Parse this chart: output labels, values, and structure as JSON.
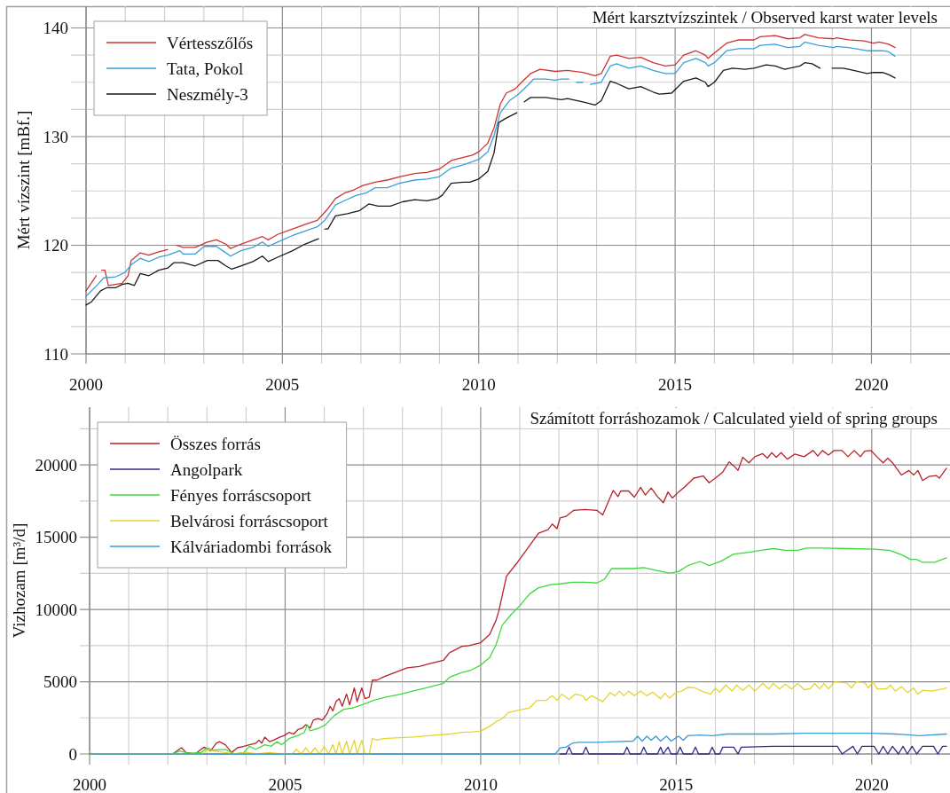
{
  "chart_data": [
    {
      "type": "line",
      "title": "Mért karsztvízszintek / Observed karst water levels",
      "ylabel": "Mért vízszint [mBf.]",
      "xlim": [
        2000,
        2022
      ],
      "ylim": [
        110,
        142
      ],
      "xticks": [
        2000,
        {
          "value": 2001,
          "label": null
        },
        {
          "value": 2002,
          "label": null
        },
        {
          "value": 2003,
          "label": null
        },
        {
          "value": 2004,
          "label": null
        },
        2005,
        {
          "value": 2006,
          "label": null
        },
        {
          "value": 2007,
          "label": null
        },
        {
          "value": 2008,
          "label": null
        },
        {
          "value": 2009,
          "label": null
        },
        2010,
        {
          "value": 2011,
          "label": null
        },
        {
          "value": 2012,
          "label": null
        },
        {
          "value": 2013,
          "label": null
        },
        {
          "value": 2014,
          "label": null
        },
        2015,
        {
          "value": 2016,
          "label": null
        },
        {
          "value": 2017,
          "label": null
        },
        {
          "value": 2018,
          "label": null
        },
        {
          "value": 2019,
          "label": null
        },
        2020,
        {
          "value": 2021,
          "label": null
        }
      ],
      "yticks": [
        110,
        {
          "value": 112.5,
          "label": null
        },
        {
          "value": 115,
          "label": null
        },
        {
          "value": 117.5,
          "label": null
        },
        120,
        {
          "value": 122.5,
          "label": null
        },
        {
          "value": 125,
          "label": null
        },
        {
          "value": 127.5,
          "label": null
        },
        130,
        {
          "value": 132.5,
          "label": null
        },
        {
          "value": 135,
          "label": null
        },
        {
          "value": 137.5,
          "label": null
        },
        140
      ],
      "grid": true,
      "legend": "top left",
      "series": [
        {
          "name": "Vértesszőlős",
          "color": "#cc3333",
          "x": [
            2000.0,
            2000.26,
            2000.33,
            2000.4,
            2000.48,
            2000.57,
            2000.92,
            2001.07,
            2001.15,
            2001.38,
            2001.6,
            2001.85,
            2002.08,
            2002.19,
            2002.3,
            2002.47,
            2002.78,
            2003.09,
            2003.32,
            2003.56,
            2003.68,
            2003.94,
            2004.25,
            2004.49,
            2004.64,
            2004.88,
            2005.26,
            2005.57,
            2005.89,
            2006.12,
            2006.35,
            2006.58,
            2006.82,
            2007.05,
            2007.36,
            2007.67,
            2007.98,
            2008.37,
            2008.68,
            2008.99,
            2009.3,
            2009.61,
            2009.84,
            2010.0,
            2010.23,
            2010.39,
            2010.55,
            2010.7,
            2010.93,
            2011.09,
            2011.32,
            2011.56,
            2011.95,
            2012.26,
            2012.65,
            2012.96,
            2013.12,
            2013.35,
            2013.51,
            2013.82,
            2014.13,
            2014.44,
            2014.75,
            2015.0,
            2015.22,
            2015.53,
            2015.77,
            2015.84,
            2016.0,
            2016.31,
            2016.62,
            2017.01,
            2017.17,
            2017.55,
            2017.87,
            2018.18,
            2018.3,
            2018.65,
            2019.04,
            2019.11,
            2019.42,
            2019.81,
            2020.05,
            2020.2,
            2020.44,
            2020.6
          ],
          "values": [
            115.8,
            117.2,
            null,
            117.7,
            117.7,
            116.3,
            116.5,
            117.2,
            118.6,
            119.3,
            119.1,
            119.4,
            119.6,
            null,
            120.0,
            119.8,
            119.8,
            120.3,
            120.5,
            120.1,
            119.7,
            120.1,
            120.5,
            120.8,
            120.5,
            121.0,
            121.5,
            121.9,
            122.3,
            123.2,
            124.3,
            124.8,
            125.1,
            125.5,
            125.8,
            126.0,
            126.3,
            126.6,
            126.7,
            127.0,
            127.8,
            128.1,
            128.3,
            128.6,
            129.4,
            130.8,
            133.0,
            134.0,
            134.4,
            135.0,
            135.8,
            136.2,
            136.0,
            136.1,
            135.9,
            135.6,
            135.8,
            137.4,
            137.5,
            137.2,
            137.3,
            136.8,
            136.5,
            136.6,
            137.5,
            137.9,
            137.5,
            137.2,
            137.7,
            138.6,
            138.9,
            138.9,
            139.2,
            139.3,
            139.0,
            139.1,
            139.4,
            139.1,
            139.0,
            139.1,
            138.9,
            138.8,
            138.6,
            138.7,
            138.5,
            138.2
          ]
        },
        {
          "name": "Tata, Pokol",
          "color": "#3b9fd8",
          "x": [
            2000.0,
            2000.3,
            2000.45,
            2000.76,
            2000.99,
            2001.15,
            2001.38,
            2001.6,
            2001.85,
            2002.08,
            2002.39,
            2002.47,
            2002.78,
            2003.01,
            2003.32,
            2003.52,
            2003.68,
            2003.94,
            2004.25,
            2004.49,
            2004.64,
            2004.88,
            2005.26,
            2005.57,
            2005.89,
            2006.08,
            2006.35,
            2006.58,
            2006.89,
            2007.13,
            2007.36,
            2007.67,
            2007.98,
            2008.37,
            2008.68,
            2008.99,
            2009.3,
            2009.61,
            2010.0,
            2010.23,
            2010.39,
            2010.55,
            2010.78,
            2011.01,
            2011.24,
            2011.4,
            2011.71,
            2011.95,
            2012.1,
            2012.3,
            2012.4,
            2012.49,
            2012.65,
            2012.75,
            2012.84,
            2013.12,
            2013.35,
            2013.51,
            2013.82,
            2014.13,
            2014.44,
            2014.75,
            2015.0,
            2015.22,
            2015.53,
            2015.77,
            2015.84,
            2016.0,
            2016.31,
            2016.62,
            2017.01,
            2017.17,
            2017.55,
            2017.87,
            2018.18,
            2018.3,
            2018.65,
            2019.04,
            2019.11,
            2019.42,
            2019.89,
            2020.05,
            2020.28,
            2020.44,
            2020.6
          ],
          "values": [
            115.3,
            116.4,
            117.0,
            117.1,
            117.5,
            118.2,
            118.8,
            118.5,
            118.9,
            119.1,
            119.5,
            119.2,
            119.2,
            119.9,
            119.9,
            119.4,
            119.0,
            119.5,
            119.8,
            120.3,
            119.9,
            120.3,
            120.9,
            121.3,
            121.7,
            122.3,
            123.7,
            124.1,
            124.6,
            124.8,
            125.3,
            125.3,
            125.7,
            126.0,
            126.1,
            126.3,
            127.1,
            127.4,
            127.9,
            128.6,
            130.1,
            132.2,
            133.3,
            133.9,
            134.7,
            135.3,
            135.3,
            135.2,
            135.3,
            135.3,
            null,
            135.0,
            135.0,
            null,
            134.8,
            135.0,
            136.5,
            136.7,
            136.3,
            136.5,
            136.1,
            135.8,
            135.8,
            136.8,
            137.2,
            136.8,
            136.5,
            136.8,
            137.9,
            138.1,
            138.1,
            138.4,
            138.5,
            138.2,
            138.3,
            138.7,
            138.4,
            138.2,
            138.3,
            138.2,
            137.9,
            137.9,
            137.9,
            137.8,
            137.4
          ]
        },
        {
          "name": "Neszmély-3",
          "color": "#1a1a1a",
          "x": [
            2000.0,
            2000.14,
            2000.37,
            2000.53,
            2000.76,
            2000.92,
            2001.07,
            2001.23,
            2001.38,
            2001.6,
            2001.85,
            2002.08,
            2002.24,
            2002.47,
            2002.78,
            2003.09,
            2003.36,
            2003.56,
            2003.71,
            2003.94,
            2004.25,
            2004.49,
            2004.64,
            2004.88,
            2005.26,
            2005.57,
            2005.92,
            2006.0,
            2006.08,
            2006.16,
            2006.35,
            2006.66,
            2006.97,
            2007.2,
            2007.44,
            2007.75,
            2008.06,
            2008.37,
            2008.68,
            2008.95,
            2009.07,
            2009.3,
            2009.61,
            2009.77,
            2010.0,
            2010.23,
            2010.39,
            2010.51,
            2010.7,
            2010.97,
            2011.06,
            2011.16,
            2011.32,
            2011.71,
            2012.1,
            2012.26,
            2012.65,
            2012.96,
            2013.12,
            2013.35,
            2013.51,
            2013.82,
            2014.13,
            2014.44,
            2014.6,
            2014.91,
            2015.22,
            2015.53,
            2015.77,
            2015.84,
            2016.0,
            2016.23,
            2016.46,
            2016.78,
            2017.01,
            2017.32,
            2017.55,
            2017.79,
            2018.18,
            2018.3,
            2018.49,
            2018.69,
            2018.85,
            2019.0,
            2019.27,
            2019.42,
            2019.89,
            2020.05,
            2020.28,
            2020.44,
            2020.6
          ],
          "values": [
            114.5,
            114.8,
            115.8,
            116.1,
            116.1,
            116.4,
            116.5,
            116.3,
            117.4,
            117.2,
            117.7,
            117.9,
            118.4,
            118.4,
            118.1,
            118.6,
            118.6,
            118.1,
            117.8,
            118.1,
            118.5,
            119.0,
            118.5,
            118.9,
            119.5,
            120.1,
            120.6,
            null,
            121.5,
            121.5,
            122.7,
            122.9,
            123.2,
            123.8,
            123.6,
            123.6,
            124.0,
            124.2,
            124.1,
            124.3,
            124.6,
            125.7,
            125.8,
            125.8,
            126.1,
            126.8,
            128.5,
            131.3,
            131.7,
            132.2,
            null,
            133.2,
            133.6,
            133.6,
            133.4,
            133.5,
            133.2,
            132.9,
            133.3,
            135.1,
            134.9,
            134.4,
            134.6,
            134.1,
            133.9,
            134.0,
            135.1,
            135.4,
            135.0,
            134.6,
            135.0,
            136.1,
            136.3,
            136.2,
            136.3,
            136.6,
            136.5,
            136.2,
            136.5,
            136.8,
            136.7,
            136.3,
            null,
            136.3,
            136.3,
            136.2,
            135.8,
            135.9,
            135.9,
            135.7,
            135.4
          ]
        }
      ]
    },
    {
      "type": "line",
      "title": "Számított forráshozamok / Calculated yield of spring groups",
      "ylabel": "Vizhozam [m³/d]",
      "xlim": [
        2000,
        2022
      ],
      "ylim": [
        0,
        24000
      ],
      "xticks": [
        2000,
        {
          "value": 2001,
          "label": null
        },
        {
          "value": 2002,
          "label": null
        },
        {
          "value": 2003,
          "label": null
        },
        {
          "value": 2004,
          "label": null
        },
        2005,
        {
          "value": 2006,
          "label": null
        },
        {
          "value": 2007,
          "label": null
        },
        {
          "value": 2008,
          "label": null
        },
        {
          "value": 2009,
          "label": null
        },
        2010,
        {
          "value": 2011,
          "label": null
        },
        {
          "value": 2012,
          "label": null
        },
        {
          "value": 2013,
          "label": null
        },
        {
          "value": 2014,
          "label": null
        },
        2015,
        {
          "value": 2016,
          "label": null
        },
        {
          "value": 2017,
          "label": null
        },
        {
          "value": 2018,
          "label": null
        },
        {
          "value": 2019,
          "label": null
        },
        2020,
        {
          "value": 2021,
          "label": null
        }
      ],
      "yticks": [
        0,
        {
          "value": 2500,
          "label": null
        },
        5000,
        {
          "value": 7500,
          "label": null
        },
        10000,
        {
          "value": 12500,
          "label": null
        },
        15000,
        {
          "value": 17500,
          "label": null
        },
        20000,
        {
          "value": 22500,
          "label": null
        }
      ],
      "grid": true,
      "legend": "top left",
      "series": [
        {
          "name": "Összes forrás",
          "color": "#b5232a",
          "x": [
            2002.12,
            2002.35,
            2002.47,
            2002.7,
            2002.85,
            2002.93,
            2003.09,
            2003.24,
            2003.32,
            2003.47,
            2003.63,
            2003.78,
            2003.94,
            2004.09,
            2004.25,
            2004.33,
            2004.4,
            2004.48,
            2004.6,
            2004.71,
            2004.87,
            2004.98,
            2005.1,
            2005.22,
            2005.33,
            2005.45,
            2005.53,
            2005.64,
            2005.72,
            2005.84,
            2005.95,
            2006.07,
            2006.15,
            2006.22,
            2006.3,
            2006.38,
            2006.46,
            2006.57,
            2006.65,
            2006.77,
            2006.84,
            2006.96,
            2007.04,
            2007.15,
            2007.23,
            2007.35,
            2007.5,
            2007.81,
            2008.12,
            2008.43,
            2008.74,
            2009.05,
            2009.21,
            2009.52,
            2009.7,
            2010.0,
            2010.23,
            2010.39,
            2010.47,
            2010.66,
            2010.94,
            2011.25,
            2011.48,
            2011.72,
            2011.83,
            2011.95,
            2012.03,
            2012.18,
            2012.38,
            2012.66,
            2012.97,
            2013.12,
            2013.27,
            2013.39,
            2013.51,
            2013.58,
            2013.78,
            2013.93,
            2014.09,
            2014.21,
            2014.36,
            2014.52,
            2014.67,
            2014.79,
            2014.9,
            2015.06,
            2015.22,
            2015.45,
            2015.69,
            2015.84,
            2016.0,
            2016.19,
            2016.35,
            2016.47,
            2016.58,
            2016.7,
            2016.86,
            2017.01,
            2017.21,
            2017.33,
            2017.44,
            2017.56,
            2017.68,
            2017.84,
            2018.03,
            2018.27,
            2018.5,
            2018.62,
            2018.74,
            2018.89,
            2019.04,
            2019.24,
            2019.39,
            2019.55,
            2019.71,
            2019.82,
            2019.98,
            2020.13,
            2020.29,
            2020.41,
            2020.53,
            2020.76,
            2020.95,
            2021.07,
            2021.18,
            2021.3,
            2021.46,
            2021.65,
            2021.73,
            2021.91
          ],
          "values": [
            0,
            430,
            100,
            0,
            320,
            470,
            210,
            740,
            850,
            640,
            100,
            430,
            530,
            640,
            740,
            960,
            740,
            1170,
            850,
            960,
            1170,
            1280,
            1490,
            1380,
            1700,
            1810,
            2020,
            1810,
            2340,
            2450,
            2340,
            2770,
            3300,
            2980,
            3620,
            3830,
            3300,
            4150,
            3400,
            4570,
            3620,
            4570,
            3830,
            3940,
            5110,
            5110,
            5320,
            5640,
            5960,
            6060,
            6280,
            6490,
            7020,
            7450,
            7500,
            7700,
            8270,
            9230,
            9970,
            12300,
            13260,
            14420,
            15270,
            15520,
            15910,
            15590,
            16330,
            16440,
            16860,
            16920,
            16860,
            16540,
            17490,
            18240,
            17810,
            18200,
            18200,
            17770,
            18450,
            17920,
            18410,
            17810,
            17390,
            18130,
            17710,
            18130,
            18490,
            19090,
            19240,
            18770,
            19090,
            19510,
            20210,
            19940,
            19620,
            20530,
            20150,
            20570,
            20780,
            20470,
            20850,
            20530,
            20850,
            20400,
            20750,
            20570,
            21000,
            20620,
            21000,
            20680,
            21000,
            21000,
            20570,
            21000,
            20570,
            20960,
            21000,
            20570,
            20150,
            20470,
            20150,
            19300,
            19620,
            19300,
            19620,
            18920,
            19200,
            19260,
            19090,
            19770
          ]
        },
        {
          "name": "Angolpark",
          "color": "#2e2a86",
          "x": [
            2012.03,
            2012.18,
            2012.26,
            2012.34,
            2012.61,
            2012.69,
            2012.77,
            2013.66,
            2013.74,
            2013.82,
            2014.09,
            2014.17,
            2014.25,
            2014.52,
            2014.6,
            2014.67,
            2014.79,
            2014.87,
            2015.02,
            2015.1,
            2015.18,
            2015.41,
            2015.49,
            2015.57,
            2015.84,
            2015.92,
            2016.0,
            2016.11,
            2016.19,
            2016.47,
            2016.58,
            2016.66,
            2017.48,
            2019.12,
            2019.24,
            2019.52,
            2019.63,
            2019.75,
            2020.06,
            2020.18,
            2020.29,
            2020.41,
            2020.53,
            2020.68,
            2020.8,
            2020.91,
            2021.03,
            2021.15,
            2021.3,
            2021.58,
            2021.69,
            2021.81,
            2021.91
          ],
          "values": [
            0,
            0,
            470,
            0,
            0,
            470,
            0,
            0,
            470,
            0,
            0,
            470,
            0,
            0,
            470,
            0,
            470,
            0,
            0,
            470,
            0,
            0,
            470,
            0,
            0,
            470,
            0,
            0,
            470,
            470,
            0,
            470,
            530,
            530,
            0,
            530,
            0,
            530,
            530,
            0,
            530,
            0,
            530,
            0,
            530,
            0,
            530,
            0,
            530,
            530,
            0,
            530,
            530
          ]
        },
        {
          "name": "Fényes forráscsoport",
          "color": "#3dd93d",
          "x": [
            2002.12,
            2002.31,
            2002.54,
            2002.85,
            2003.01,
            2003.16,
            2003.47,
            2003.71,
            2003.94,
            2004.09,
            2004.25,
            2004.48,
            2004.64,
            2004.79,
            2004.91,
            2005.1,
            2005.33,
            2005.49,
            2005.57,
            2005.64,
            2005.88,
            2006.03,
            2006.26,
            2006.5,
            2006.73,
            2006.96,
            2007.27,
            2007.58,
            2007.97,
            2008.28,
            2008.59,
            2009.05,
            2009.21,
            2009.52,
            2009.75,
            2010.0,
            2010.23,
            2010.39,
            2010.55,
            2010.78,
            2011.01,
            2011.25,
            2011.48,
            2011.79,
            2012.03,
            2012.34,
            2012.66,
            2012.97,
            2013.16,
            2013.35,
            2013.58,
            2013.9,
            2014.17,
            2014.52,
            2014.83,
            2015.06,
            2015.3,
            2015.61,
            2015.84,
            2016.16,
            2016.47,
            2016.86,
            2017.17,
            2017.48,
            2017.79,
            2018.11,
            2018.34,
            2018.74,
            2019.44,
            2020.06,
            2020.45,
            2020.76,
            2020.99,
            2021.14,
            2021.3,
            2021.61,
            2021.91
          ],
          "values": [
            0,
            210,
            40,
            100,
            430,
            260,
            320,
            0,
            100,
            530,
            320,
            640,
            530,
            850,
            640,
            1060,
            1280,
            1490,
            2020,
            1600,
            1810,
            2020,
            2660,
            3090,
            3190,
            3400,
            3720,
            3940,
            4150,
            4360,
            4570,
            4890,
            5320,
            5640,
            5800,
            6150,
            6680,
            7530,
            8910,
            9650,
            10290,
            11070,
            11500,
            11710,
            11770,
            11880,
            11880,
            11830,
            12090,
            12830,
            12830,
            12830,
            12900,
            12680,
            12510,
            12620,
            13040,
            13320,
            13040,
            13360,
            13830,
            13960,
            14100,
            14210,
            14100,
            14100,
            14250,
            14250,
            14210,
            14170,
            14100,
            13790,
            13470,
            13470,
            13260,
            13260,
            13570
          ]
        },
        {
          "name": "Belvárosi forráscsoport",
          "color": "#e6d42e",
          "x": [
            2000.0,
            2000.06,
            2002.9,
            2003.01,
            2003.16,
            2003.47,
            2003.7,
            2004.0,
            2004.3,
            2004.6,
            2004.9,
            2005.18,
            2005.29,
            2005.41,
            2005.53,
            2005.64,
            2005.76,
            2005.88,
            2006.0,
            2006.11,
            2006.22,
            2006.3,
            2006.38,
            2006.46,
            2006.57,
            2006.65,
            2006.77,
            2006.84,
            2006.96,
            2007.04,
            2007.15,
            2007.23,
            2007.35,
            2007.5,
            2007.81,
            2008.28,
            2008.74,
            2009.21,
            2009.52,
            2009.8,
            2010.0,
            2010.23,
            2010.39,
            2010.55,
            2010.7,
            2010.94,
            2011.25,
            2011.44,
            2011.68,
            2011.83,
            2011.95,
            2012.07,
            2012.26,
            2012.42,
            2012.61,
            2012.69,
            2012.84,
            2013.12,
            2013.31,
            2013.43,
            2013.55,
            2013.66,
            2013.78,
            2013.93,
            2014.09,
            2014.25,
            2014.4,
            2014.6,
            2014.71,
            2014.83,
            2014.98,
            2015.14,
            2015.3,
            2015.49,
            2015.65,
            2015.88,
            2016.0,
            2016.11,
            2016.27,
            2016.43,
            2016.54,
            2016.7,
            2016.86,
            2017.01,
            2017.21,
            2017.37,
            2017.48,
            2017.64,
            2017.79,
            2017.95,
            2018.11,
            2018.27,
            2018.42,
            2018.54,
            2018.66,
            2018.78,
            2018.89,
            2019.05,
            2019.36,
            2019.48,
            2019.6,
            2019.83,
            2019.91,
            2020.03,
            2020.14,
            2020.37,
            2020.48,
            2020.6,
            2020.76,
            2020.91,
            2021.07,
            2021.18,
            2021.3,
            2021.54,
            2021.91
          ],
          "values": [
            150,
            0,
            0,
            320,
            210,
            100,
            0,
            100,
            0,
            100,
            0,
            0,
            320,
            0,
            430,
            0,
            430,
            0,
            530,
            0,
            640,
            0,
            850,
            0,
            890,
            0,
            960,
            0,
            960,
            0,
            0,
            1060,
            960,
            1060,
            1110,
            1170,
            1280,
            1380,
            1490,
            1530,
            1590,
            1910,
            2230,
            2440,
            2860,
            3010,
            3180,
            3710,
            3710,
            4030,
            3710,
            4140,
            3780,
            4140,
            4030,
            3710,
            4030,
            3610,
            4240,
            4030,
            4350,
            4030,
            4350,
            4030,
            4350,
            4030,
            4280,
            3820,
            4200,
            3860,
            4240,
            4350,
            4620,
            4560,
            4350,
            4140,
            4560,
            4280,
            4770,
            4350,
            4770,
            4410,
            4770,
            4350,
            4880,
            4500,
            4880,
            4500,
            4840,
            4500,
            4880,
            4450,
            4500,
            4880,
            4500,
            4880,
            4500,
            4990,
            4920,
            4560,
            4990,
            4920,
            4560,
            4990,
            4500,
            4500,
            4770,
            4350,
            4670,
            4240,
            4560,
            4140,
            4410,
            4350,
            4560
          ]
        },
        {
          "name": "Kálváriadombi források",
          "color": "#3a9bd5",
          "x": [
            2000.0,
            2011.91,
            2012.03,
            2012.18,
            2012.34,
            2012.5,
            2012.97,
            2013.43,
            2013.9,
            2014.01,
            2014.13,
            2014.25,
            2014.36,
            2014.48,
            2014.6,
            2014.75,
            2014.87,
            2015.06,
            2015.18,
            2015.3,
            2015.61,
            2015.92,
            2016.31,
            2017.48,
            2018.27,
            2019.05,
            2019.98,
            2020.6,
            2021.22,
            2021.91
          ],
          "values": [
            0,
            0,
            420,
            470,
            740,
            810,
            810,
            850,
            890,
            1230,
            890,
            1230,
            950,
            1230,
            890,
            1230,
            890,
            1230,
            950,
            1270,
            1310,
            1270,
            1380,
            1380,
            1440,
            1440,
            1440,
            1380,
            1270,
            1380
          ]
        }
      ]
    }
  ]
}
